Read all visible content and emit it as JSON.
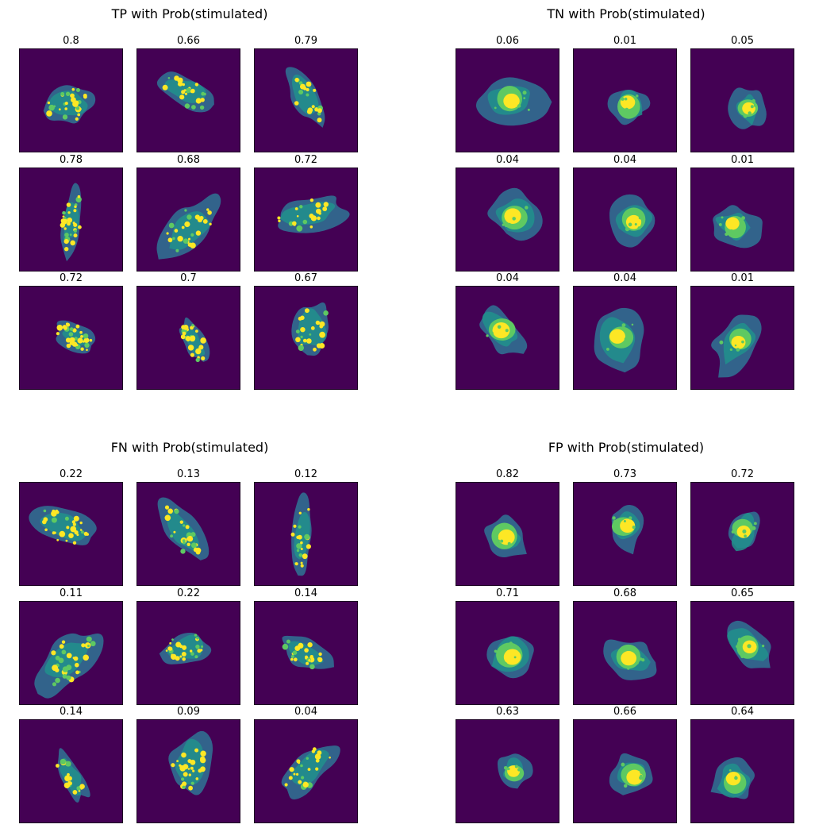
{
  "colors": {
    "background": "#440154",
    "dim": "#31688e",
    "mid": "#21918c",
    "bright": "#5ec962",
    "hot": "#fde725"
  },
  "panels": [
    {
      "title": "TP with Prob(stimulated)",
      "values": [
        "0.8",
        "0.66",
        "0.79",
        "0.78",
        "0.68",
        "0.72",
        "0.72",
        "0.7",
        "0.67"
      ]
    },
    {
      "title": "TN with Prob(stimulated)",
      "values": [
        "0.06",
        "0.01",
        "0.05",
        "0.04",
        "0.04",
        "0.01",
        "0.04",
        "0.04",
        "0.01"
      ]
    },
    {
      "title": "FN with Prob(stimulated)",
      "values": [
        "0.22",
        "0.13",
        "0.12",
        "0.11",
        "0.22",
        "0.14",
        "0.14",
        "0.09",
        "0.04"
      ]
    },
    {
      "title": "FP with Prob(stimulated)",
      "values": [
        "0.82",
        "0.73",
        "0.72",
        "0.71",
        "0.68",
        "0.65",
        "0.63",
        "0.66",
        "0.64"
      ]
    }
  ]
}
